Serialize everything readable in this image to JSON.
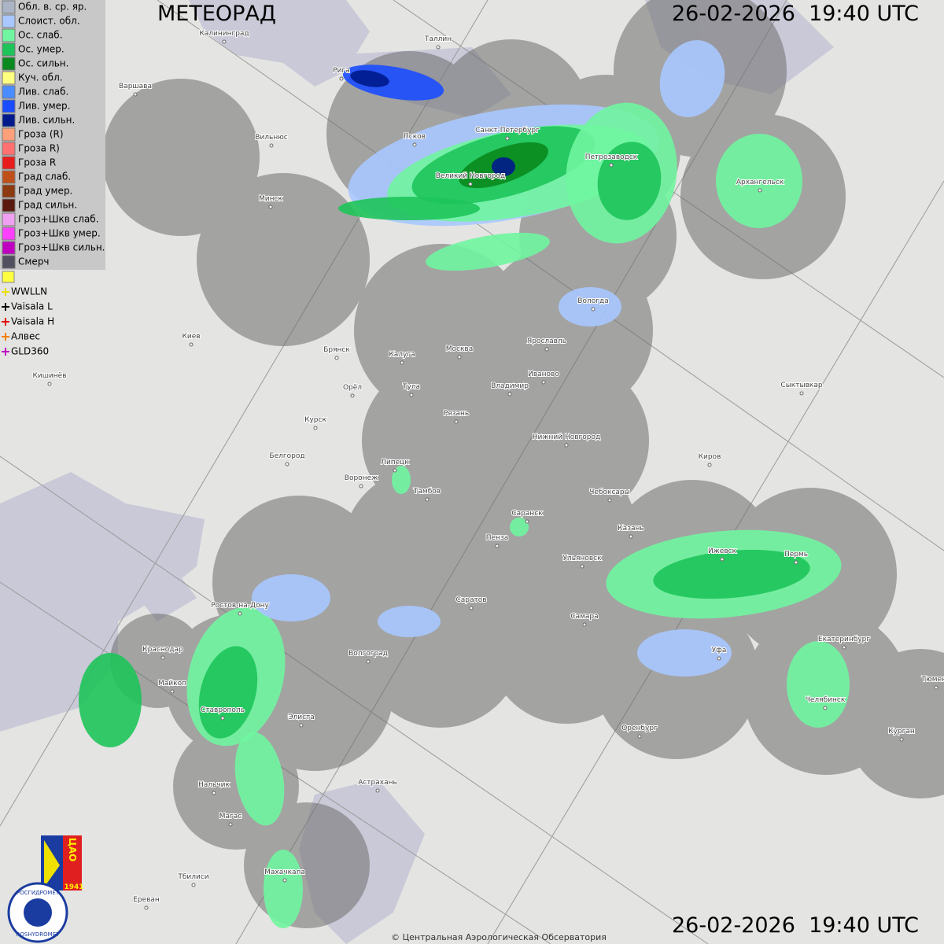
{
  "header": {
    "title": "МЕТЕОРАД",
    "timestamp_top": "26-02-2026  19:40 UTC",
    "timestamp_bottom": "26-02-2026  19:40 UTC"
  },
  "legend": {
    "items": [
      {
        "label": "Обл. в. ср. яр.",
        "color": "#aab4c4"
      },
      {
        "label": "Слоист. обл.",
        "color": "#a8c8ff"
      },
      {
        "label": "Ос. слаб.",
        "color": "#70f5a0"
      },
      {
        "label": "Ос. умер.",
        "color": "#1ec45a"
      },
      {
        "label": "Ос. сильн.",
        "color": "#0a8a1e"
      },
      {
        "label": "Куч. обл.",
        "color": "#ffff80"
      },
      {
        "label": "Лив. слаб.",
        "color": "#4a8cff"
      },
      {
        "label": "Лив. умер.",
        "color": "#1a4cff"
      },
      {
        "label": "Лив. сильн.",
        "color": "#001a8c"
      },
      {
        "label": "Гроза (R)",
        "color": "#ffa07a"
      },
      {
        "label": "Гроза R)",
        "color": "#ff7070"
      },
      {
        "label": "Гроза R",
        "color": "#e81c1c"
      },
      {
        "label": "Град слаб.",
        "color": "#c0501a"
      },
      {
        "label": "Град умер.",
        "color": "#8c3a10"
      },
      {
        "label": "Град сильн.",
        "color": "#5a1a10"
      },
      {
        "label": "Гроз+Шкв слаб.",
        "color": "#f0a0f0"
      },
      {
        "label": "Гроз+Шкв умер.",
        "color": "#ff40ff"
      },
      {
        "label": "Гроз+Шкв сильн.",
        "color": "#c000c0"
      },
      {
        "label": "Смерч",
        "color": "#505060"
      }
    ],
    "lightning": [
      {
        "label": "WWLLN",
        "color": "#e8e000"
      },
      {
        "label": "Vaisala L",
        "color": "#000000"
      },
      {
        "label": "Vaisala H",
        "color": "#e01010"
      },
      {
        "label": "Алвес",
        "color": "#f08000"
      },
      {
        "label": "GLD360",
        "color": "#c000c0"
      }
    ]
  },
  "cities": [
    "Калининград",
    "Таллин",
    "Рига",
    "Варшава",
    "Вильнюс",
    "Псков",
    "Санкт-Петербург",
    "Петрозаводск",
    "Архангельск",
    "Великий Новгород",
    "Минск",
    "Вологда",
    "Киев",
    "Брянск",
    "Калуга",
    "Москва",
    "Ярославль",
    "Иваново",
    "Владимир",
    "Тула",
    "Орёл",
    "Кишинёв",
    "Рязань",
    "Курск",
    "Сыктывкар",
    "Нижний Новгород",
    "Белгород",
    "Киров",
    "Липецк",
    "Воронеж",
    "Тамбов",
    "Чебоксары",
    "Саранск",
    "Казань",
    "Пенза",
    "Ижевск",
    "Пермь",
    "Ульяновск",
    "Ростов-на-Дону",
    "Саратов",
    "Самара",
    "Краснодар",
    "Волгоград",
    "Уфа",
    "Екатеринбург",
    "Тюмень",
    "Майкоп",
    "Ставрополь",
    "Элиста",
    "Челябинск",
    "Оренбург",
    "Курган",
    "Астрахань",
    "Нальчик",
    "Магас",
    "Тбилиси",
    "Махачкала",
    "Ереван"
  ],
  "logo": {
    "cao": "ЦАО",
    "year": "1941",
    "ru": "РОСГИДРОМЕТ",
    "en": "ROSHYDROMET"
  },
  "footer": {
    "copyright": "© Центральная Аэрологическая Обсерватория"
  }
}
